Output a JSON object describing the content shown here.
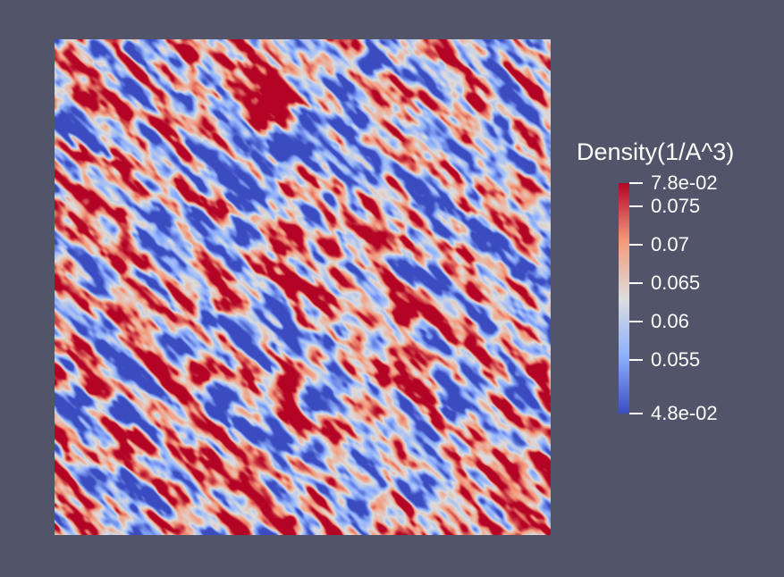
{
  "colorbar": {
    "title": "Density(1/A^3)",
    "min_label": "4.8e-02",
    "max_label": "7.8e-02",
    "range": [
      0.048,
      0.078
    ],
    "ticks": [
      {
        "value": 0.078,
        "label": "7.8e-02"
      },
      {
        "value": 0.075,
        "label": "0.075"
      },
      {
        "value": 0.07,
        "label": "0.07"
      },
      {
        "value": 0.065,
        "label": "0.065"
      },
      {
        "value": 0.06,
        "label": "0.06"
      },
      {
        "value": 0.055,
        "label": "0.055"
      },
      {
        "value": 0.048,
        "label": "4.8e-02"
      }
    ],
    "colormap": "cool-to-warm",
    "colors": {
      "low": "#3b4cc0",
      "mid": "#dddddd",
      "high": "#b40426"
    }
  },
  "background_color": "#525469"
}
